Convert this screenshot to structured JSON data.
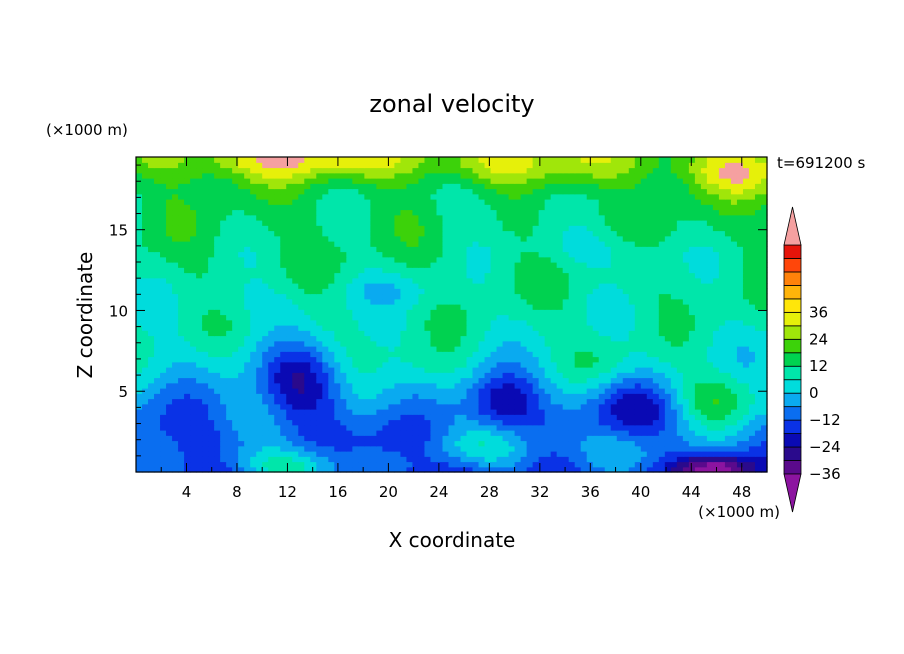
{
  "chart_data": {
    "type": "heatmap",
    "title": "zonal velocity",
    "xlabel": "X coordinate",
    "ylabel": "Z coordinate",
    "x_unit": "(×1000 m)",
    "y_unit": "(×1000 m)",
    "time_label": "t=691200 s",
    "xlim": [
      0,
      50
    ],
    "ylim": [
      0,
      19.5
    ],
    "x_ticks": [
      4,
      8,
      12,
      16,
      20,
      24,
      28,
      32,
      36,
      40,
      44,
      48
    ],
    "y_ticks": [
      5,
      10,
      15
    ],
    "grid": false,
    "colorbar": {
      "min": -42,
      "max": 42,
      "step": 6,
      "labels": [
        36,
        24,
        12,
        0,
        -12,
        -24,
        -36
      ],
      "colors": [
        "#5a0a8c",
        "#2a0a8c",
        "#0a0ab4",
        "#0a32e6",
        "#0a6ef0",
        "#0aaaf0",
        "#00dcdc",
        "#00e6aa",
        "#00d250",
        "#3cd20a",
        "#a0e60a",
        "#e6f00a",
        "#ffe60a",
        "#ffb40a",
        "#ff820a",
        "#ff460a",
        "#e6140a"
      ],
      "under_color": "#8c14a0",
      "over_color": "#f5a0a0"
    },
    "features": [
      {
        "x": 12,
        "z": 19.5,
        "u": 20,
        "sx": 11,
        "sz": 1.4
      },
      {
        "x": 48,
        "z": 18.7,
        "u": 18,
        "sx": 5,
        "sz": 1.6
      },
      {
        "x": 32,
        "z": 19.3,
        "u": 14,
        "sx": 10,
        "sz": 1.5
      },
      {
        "x": 27,
        "z": 16.8,
        "u": -6,
        "sx": 3.5,
        "sz": 1.6
      },
      {
        "x": 37,
        "z": 13.8,
        "u": -8,
        "sx": 6,
        "sz": 1.3
      },
      {
        "x": 20,
        "z": 11.4,
        "u": -7,
        "sx": 5,
        "sz": 1.2
      },
      {
        "x": 9,
        "z": 10.6,
        "u": -5,
        "sx": 5,
        "sz": 1.2
      },
      {
        "x": 13,
        "z": 5.6,
        "u": -25,
        "sx": 3.5,
        "sz": 2.3
      },
      {
        "x": 29,
        "z": 4.4,
        "u": -25,
        "sx": 3,
        "sz": 1.9
      },
      {
        "x": 39,
        "z": 4.0,
        "u": -18,
        "sx": 4,
        "sz": 1.8
      },
      {
        "x": 46,
        "z": 0.3,
        "u": -28,
        "sx": 3,
        "sz": 0.9
      },
      {
        "x": 3,
        "z": 3.0,
        "u": -10,
        "sx": 5,
        "sz": 2.5
      },
      {
        "x": 21,
        "z": 2.0,
        "u": -13,
        "sx": 4,
        "sz": 1.8
      },
      {
        "x": 12,
        "z": 0.3,
        "u": 22,
        "sx": 4.5,
        "sz": 1.2
      },
      {
        "x": 27,
        "z": 1.5,
        "u": 14,
        "sx": 5,
        "sz": 1.3
      },
      {
        "x": 46,
        "z": 4.5,
        "u": 16,
        "sx": 3.5,
        "sz": 1.7
      },
      {
        "x": 38,
        "z": 1.4,
        "u": 6,
        "sx": 4,
        "sz": 1.2
      },
      {
        "x": 23,
        "z": 6.5,
        "u": 6,
        "sx": 3,
        "sz": 1.6
      },
      {
        "x": 37,
        "z": 7.0,
        "u": 5,
        "sx": 3,
        "sz": 1.5
      }
    ]
  }
}
